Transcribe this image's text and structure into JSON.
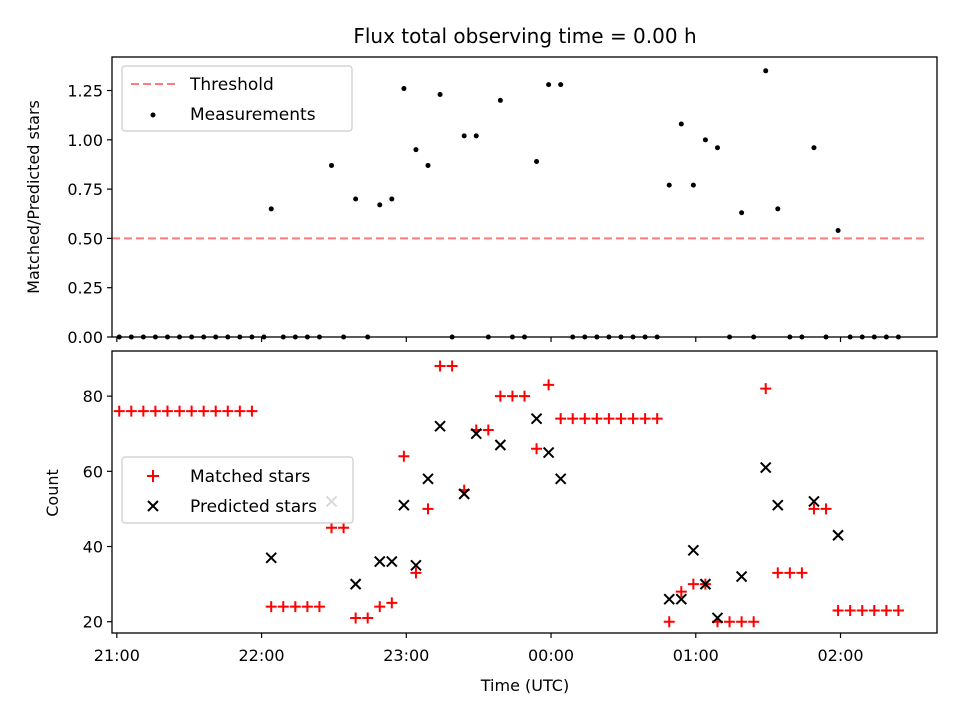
{
  "figure": {
    "title": "Flux total observing time = 0.00 h",
    "xlabel": "Time (UTC)",
    "x_ticks": [
      "21:00",
      "22:00",
      "23:00",
      "00:00",
      "01:00",
      "02:00"
    ]
  },
  "chart_data": [
    {
      "type": "scatter",
      "ylabel": "Matched/Predicted stars",
      "xlim": [
        "20:58",
        "02:40"
      ],
      "ylim": [
        0,
        1.42
      ],
      "y_ticks": [
        "0.00",
        "0.25",
        "0.50",
        "0.75",
        "1.00",
        "1.25"
      ],
      "legend_position": "top-left",
      "colors": {
        "threshold": "#ff7b7b",
        "measurements": "#000000"
      },
      "series": [
        {
          "name": "Threshold",
          "style": "dashed-line",
          "points": [
            [
              "20:58",
              0.5
            ],
            [
              "02:36",
              0.5
            ]
          ]
        },
        {
          "name": "Measurements",
          "style": "dot",
          "points": [
            [
              "21:01",
              0
            ],
            [
              "21:06",
              0
            ],
            [
              "21:11",
              0
            ],
            [
              "21:16",
              0
            ],
            [
              "21:21",
              0
            ],
            [
              "21:26",
              0
            ],
            [
              "21:31",
              0
            ],
            [
              "21:36",
              0
            ],
            [
              "21:41",
              0
            ],
            [
              "21:46",
              0
            ],
            [
              "21:51",
              0
            ],
            [
              "21:56",
              0
            ],
            [
              "22:01",
              0
            ],
            [
              "22:04",
              0.65
            ],
            [
              "22:09",
              0
            ],
            [
              "22:14",
              0
            ],
            [
              "22:19",
              0
            ],
            [
              "22:24",
              0
            ],
            [
              "22:29",
              0.87
            ],
            [
              "22:34",
              0
            ],
            [
              "22:39",
              0.7
            ],
            [
              "22:44",
              0
            ],
            [
              "22:49",
              0.67
            ],
            [
              "22:54",
              0.7
            ],
            [
              "22:59",
              1.26
            ],
            [
              "23:04",
              0.95
            ],
            [
              "23:09",
              0.87
            ],
            [
              "23:14",
              1.23
            ],
            [
              "23:19",
              0
            ],
            [
              "23:24",
              1.02
            ],
            [
              "23:29",
              1.02
            ],
            [
              "23:34",
              0
            ],
            [
              "23:39",
              1.2
            ],
            [
              "23:44",
              0
            ],
            [
              "23:49",
              0
            ],
            [
              "23:54",
              0.89
            ],
            [
              "23:59",
              1.28
            ],
            [
              "00:04",
              1.28
            ],
            [
              "00:09",
              0
            ],
            [
              "00:14",
              0
            ],
            [
              "00:19",
              0
            ],
            [
              "00:24",
              0
            ],
            [
              "00:29",
              0
            ],
            [
              "00:34",
              0
            ],
            [
              "00:39",
              0
            ],
            [
              "00:44",
              0
            ],
            [
              "00:49",
              0.77
            ],
            [
              "00:54",
              1.08
            ],
            [
              "00:59",
              0.77
            ],
            [
              "01:04",
              1.0
            ],
            [
              "01:09",
              0.96
            ],
            [
              "01:14",
              0
            ],
            [
              "01:19",
              0.63
            ],
            [
              "01:24",
              0
            ],
            [
              "01:29",
              1.35
            ],
            [
              "01:34",
              0.65
            ],
            [
              "01:39",
              0
            ],
            [
              "01:44",
              0
            ],
            [
              "01:49",
              0.96
            ],
            [
              "01:54",
              0
            ],
            [
              "01:59",
              0.54
            ],
            [
              "02:04",
              0
            ],
            [
              "02:09",
              0
            ],
            [
              "02:14",
              0
            ],
            [
              "02:19",
              0
            ],
            [
              "02:24",
              0
            ]
          ]
        }
      ]
    },
    {
      "type": "scatter",
      "ylabel": "Count",
      "xlim": [
        "20:58",
        "02:40"
      ],
      "ylim": [
        17,
        92
      ],
      "y_ticks": [
        "20",
        "40",
        "60",
        "80"
      ],
      "legend_position": "center-left",
      "colors": {
        "matched": "#ff0000",
        "predicted": "#000000"
      },
      "series": [
        {
          "name": "Matched stars",
          "marker": "plus",
          "points": [
            [
              "21:01",
              76
            ],
            [
              "21:06",
              76
            ],
            [
              "21:11",
              76
            ],
            [
              "21:16",
              76
            ],
            [
              "21:21",
              76
            ],
            [
              "21:26",
              76
            ],
            [
              "21:31",
              76
            ],
            [
              "21:36",
              76
            ],
            [
              "21:41",
              76
            ],
            [
              "21:46",
              76
            ],
            [
              "21:51",
              76
            ],
            [
              "21:56",
              76
            ],
            [
              "22:04",
              24
            ],
            [
              "22:09",
              24
            ],
            [
              "22:14",
              24
            ],
            [
              "22:19",
              24
            ],
            [
              "22:24",
              24
            ],
            [
              "22:29",
              45
            ],
            [
              "22:34",
              45
            ],
            [
              "22:39",
              21
            ],
            [
              "22:44",
              21
            ],
            [
              "22:49",
              24
            ],
            [
              "22:54",
              25
            ],
            [
              "22:59",
              64
            ],
            [
              "23:04",
              33
            ],
            [
              "23:09",
              50
            ],
            [
              "23:14",
              88
            ],
            [
              "23:19",
              88
            ],
            [
              "23:24",
              55
            ],
            [
              "23:29",
              71
            ],
            [
              "23:34",
              71
            ],
            [
              "23:39",
              80
            ],
            [
              "23:44",
              80
            ],
            [
              "23:49",
              80
            ],
            [
              "23:54",
              66
            ],
            [
              "23:59",
              83
            ],
            [
              "00:04",
              74
            ],
            [
              "00:09",
              74
            ],
            [
              "00:14",
              74
            ],
            [
              "00:19",
              74
            ],
            [
              "00:24",
              74
            ],
            [
              "00:29",
              74
            ],
            [
              "00:34",
              74
            ],
            [
              "00:39",
              74
            ],
            [
              "00:44",
              74
            ],
            [
              "00:49",
              20
            ],
            [
              "00:54",
              28
            ],
            [
              "00:59",
              30
            ],
            [
              "01:04",
              30
            ],
            [
              "01:09",
              20
            ],
            [
              "01:14",
              20
            ],
            [
              "01:19",
              20
            ],
            [
              "01:24",
              20
            ],
            [
              "01:29",
              82
            ],
            [
              "01:34",
              33
            ],
            [
              "01:39",
              33
            ],
            [
              "01:44",
              33
            ],
            [
              "01:49",
              50
            ],
            [
              "01:54",
              50
            ],
            [
              "01:59",
              23
            ],
            [
              "02:04",
              23
            ],
            [
              "02:09",
              23
            ],
            [
              "02:14",
              23
            ],
            [
              "02:19",
              23
            ],
            [
              "02:24",
              23
            ]
          ]
        },
        {
          "name": "Predicted stars",
          "marker": "x",
          "points": [
            [
              "22:04",
              37
            ],
            [
              "22:29",
              52
            ],
            [
              "22:39",
              30
            ],
            [
              "22:49",
              36
            ],
            [
              "22:54",
              36
            ],
            [
              "22:59",
              51
            ],
            [
              "23:04",
              35
            ],
            [
              "23:09",
              58
            ],
            [
              "23:14",
              72
            ],
            [
              "23:24",
              54
            ],
            [
              "23:29",
              70
            ],
            [
              "23:39",
              67
            ],
            [
              "23:54",
              74
            ],
            [
              "23:59",
              65
            ],
            [
              "00:04",
              58
            ],
            [
              "00:49",
              26
            ],
            [
              "00:54",
              26
            ],
            [
              "00:59",
              39
            ],
            [
              "01:04",
              30
            ],
            [
              "01:09",
              21
            ],
            [
              "01:19",
              32
            ],
            [
              "01:29",
              61
            ],
            [
              "01:34",
              51
            ],
            [
              "01:49",
              52
            ],
            [
              "01:59",
              43
            ]
          ]
        }
      ]
    }
  ]
}
